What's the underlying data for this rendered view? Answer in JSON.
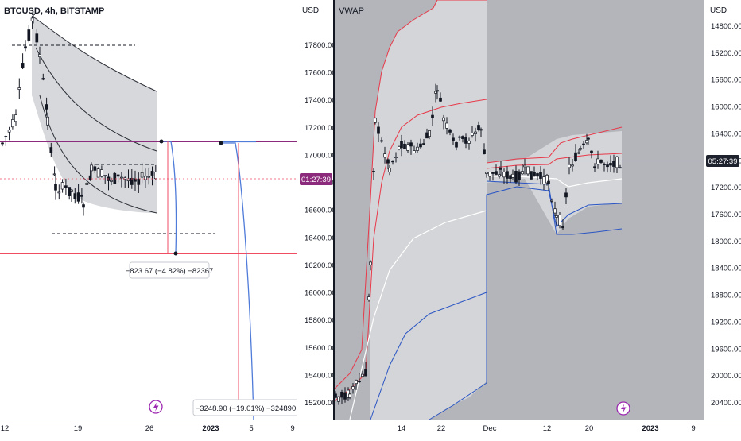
{
  "left_pane": {
    "symbol_title": "BTCUSD, 4h, BITSTAMP",
    "axis_unit": "USD",
    "price_ticks": [
      "17800.00",
      "17600.00",
      "17400.00",
      "17200.00",
      "17000.00",
      "16800.00",
      "16600.00",
      "16400.00",
      "16200.00",
      "16000.00",
      "15800.00",
      "15600.00",
      "15400.00",
      "15200.00"
    ],
    "time_ticks": [
      "12",
      "19",
      "26",
      "2023",
      "5",
      "9"
    ],
    "countdown": "01:27:39",
    "measure_label_1": "−823.67 (−4.82%) −82367",
    "measure_label_2": "−3248.90 (−19.01%) −324890",
    "lightning_icon": "lightning-icon"
  },
  "right_pane": {
    "indicator_title": "VWAP",
    "axis_unit": "USD",
    "price_ticks": [
      "14800.00",
      "15200.00",
      "15600.00",
      "16000.00",
      "16400.00",
      "16800.00",
      "17200.00",
      "17600.00",
      "18000.00",
      "18400.00",
      "18800.00",
      "19200.00",
      "19600.00",
      "20000.00",
      "20400.00"
    ],
    "time_ticks": [
      "14",
      "22",
      "Dec",
      "12",
      "20",
      "2023",
      "9"
    ],
    "countdown": "05:27:39",
    "lightning_icon": "lightning-icon"
  },
  "colors": {
    "right_background": "#b3b5ba",
    "vwap_upper": "#e8394a",
    "vwap_lower": "#2a55c4",
    "vwap_mid": "#ffffff",
    "band_fill": "#d4d5d8",
    "countdown_left_bg": "#8c2a7c",
    "countdown_right_bg": "#1e222d",
    "horizontal_line_red": "#f04d63",
    "measure_blue": "#4f7bd9",
    "purple_line": "#8c2a7c"
  },
  "chart_data": [
    {
      "type": "candlestick",
      "title": "BTCUSD, 4h, BITSTAMP",
      "ylabel": "USD",
      "ylim": [
        15100,
        18000
      ],
      "x_ticks": [
        "12",
        "19",
        "26",
        "2023",
        "5",
        "9"
      ],
      "horizontal_lines": [
        17100,
        16275
      ],
      "measurements": [
        {
          "label": "−823.67 (−4.82%) −82367",
          "from": 17100,
          "to": 16275
        },
        {
          "label": "−3248.90 (−19.01%) −324890",
          "from": 17100,
          "to": 13850
        }
      ],
      "overlay": "projected VWAP band (grey)"
    },
    {
      "type": "candlestick",
      "title": "VWAP",
      "ylabel": "USD",
      "y_axis": "inverted",
      "ylim": [
        14600,
        20700
      ],
      "x_ticks": [
        "14",
        "22",
        "Dec",
        "12",
        "20",
        "2023",
        "9"
      ],
      "series": [
        {
          "name": "VWAP upper band"
        },
        {
          "name": "VWAP"
        },
        {
          "name": "VWAP lower band"
        }
      ],
      "last_price_line": 17100
    }
  ]
}
